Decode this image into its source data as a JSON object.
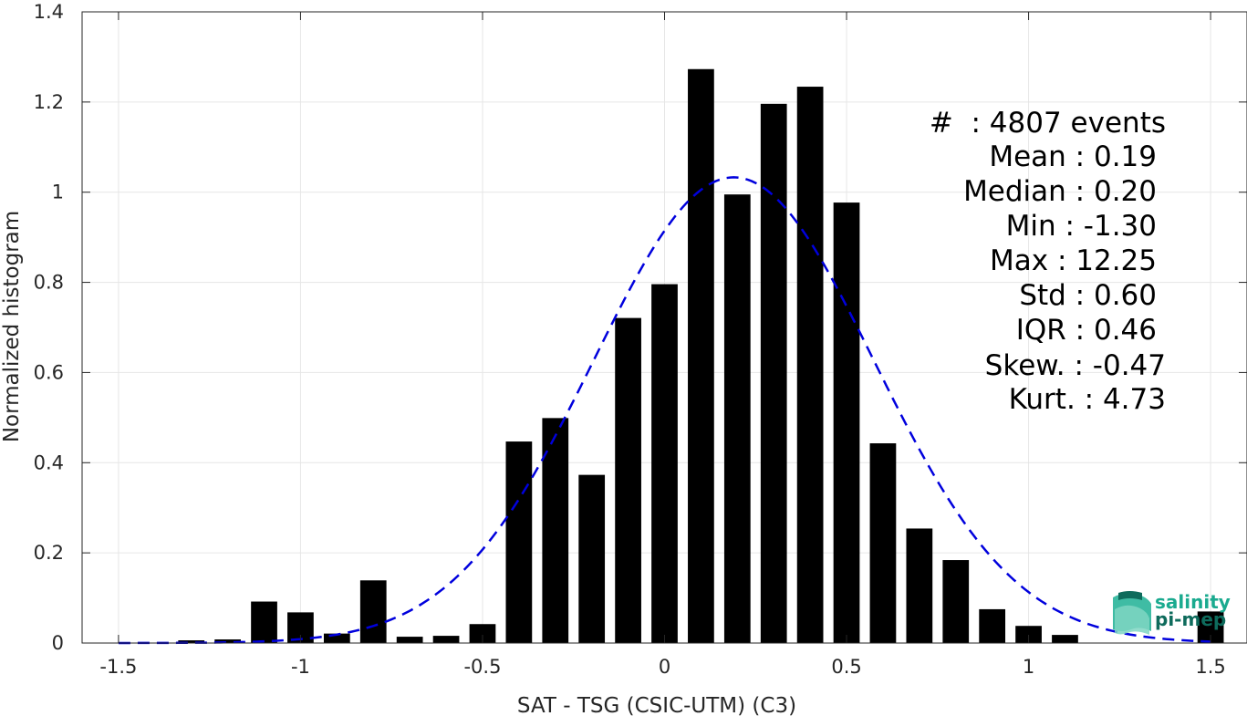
{
  "chart_data": {
    "type": "bar",
    "xlabel": "SAT - TSG (CSIC-UTM) (C3)",
    "ylabel": "Normalized histogram",
    "xlim": [
      -1.6,
      1.6
    ],
    "ylim": [
      0,
      1.4
    ],
    "x_ticks": [
      "-1.5",
      "-1",
      "-0.5",
      "0",
      "0.5",
      "1",
      "1.5"
    ],
    "x_tick_values": [
      -1.5,
      -1,
      -0.5,
      0,
      0.5,
      1,
      1.5
    ],
    "y_ticks": [
      "0",
      "0.2",
      "0.4",
      "0.6",
      "0.8",
      "1",
      "1.2",
      "1.4"
    ],
    "y_tick_values": [
      0,
      0.2,
      0.4,
      0.6,
      0.8,
      1,
      1.2,
      1.4
    ],
    "grid": true,
    "bar_color": "#000000",
    "bins": [
      -1.5,
      -1.4,
      -1.3,
      -1.2,
      -1.1,
      -1.0,
      -0.9,
      -0.8,
      -0.7,
      -0.6,
      -0.5,
      -0.4,
      -0.3,
      -0.2,
      -0.1,
      0.0,
      0.1,
      0.2,
      0.3,
      0.4,
      0.5,
      0.6,
      0.7,
      0.8,
      0.9,
      1.0,
      1.1,
      1.2,
      1.3,
      1.4,
      1.5
    ],
    "values": [
      0.0,
      0.0,
      0.006,
      0.008,
      0.092,
      0.068,
      0.021,
      0.139,
      0.014,
      0.016,
      0.042,
      0.447,
      0.499,
      0.373,
      0.721,
      0.796,
      1.273,
      0.995,
      1.196,
      1.234,
      0.977,
      0.443,
      0.254,
      0.184,
      0.075,
      0.038,
      0.018,
      0.0,
      0.0,
      0.0,
      0.07
    ],
    "fit_curve": {
      "style": "dashed",
      "color": "#0000dd",
      "mean": 0.19,
      "std": 0.385,
      "peak": 1.033,
      "x_range": [
        -1.5,
        1.5
      ]
    }
  },
  "stats": {
    "count_label": "#  : 4807 events",
    "lines": [
      "Mean : 0.19",
      "Median : 0.20",
      "Min : -1.30",
      "Max : 12.25",
      "Std : 0.60",
      "IQR : 0.46",
      "Skew. : -0.47",
      "Kurt. : 4.73"
    ]
  },
  "logo": {
    "line1": "salinity",
    "line2": "pi-mep",
    "color1": "#1aaa8f",
    "color2": "#0e6b5c"
  }
}
